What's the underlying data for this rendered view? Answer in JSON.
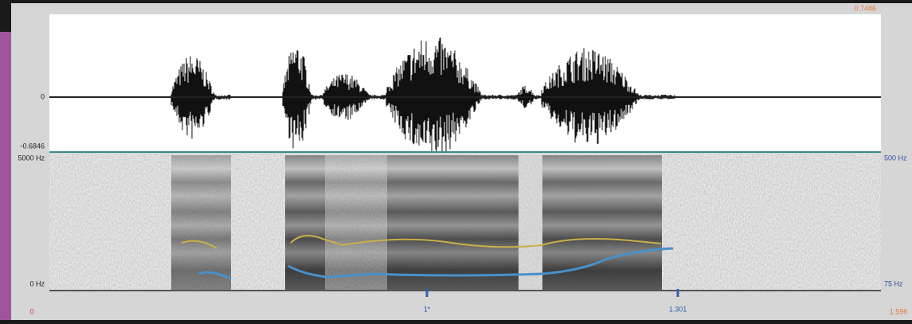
{
  "window": {
    "top_right_label": "0.7486",
    "waveform": {
      "zero_label": "0",
      "min_label": "-0.6846"
    },
    "spectrogram": {
      "max_freq_label": "5000 Hz",
      "min_freq_label": "0 Hz",
      "pitch_max_label": "500 Hz",
      "pitch_min_label": "75 Hz"
    },
    "cursor_labels": [
      "1*",
      "1.301"
    ],
    "bottom_left_label": "0",
    "bottom_right_label": "1.596"
  }
}
